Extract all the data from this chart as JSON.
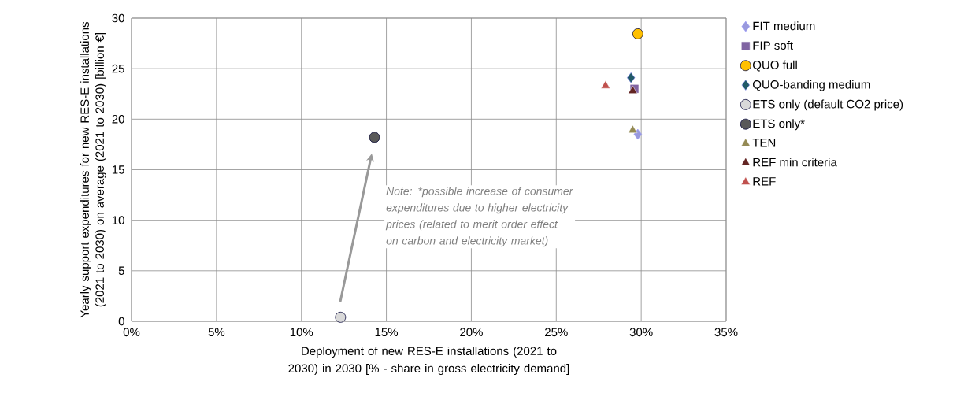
{
  "chart_data": {
    "type": "scatter",
    "xlabel": "Deployment of new RES-E installations (2021 to 2030) in 2030 [% - share in gross electricity demand]",
    "ylabel": "Yearly support expenditures for new RES-E installations (2021 to 2030) on average (2021 to 2030) [billion €]",
    "xlim": [
      0,
      35
    ],
    "ylim": [
      0,
      30
    ],
    "xticks": [
      {
        "value": 0,
        "label": "0%"
      },
      {
        "value": 5,
        "label": "5%"
      },
      {
        "value": 10,
        "label": "10%"
      },
      {
        "value": 15,
        "label": "15%"
      },
      {
        "value": 20,
        "label": "20%"
      },
      {
        "value": 25,
        "label": "25%"
      },
      {
        "value": 30,
        "label": "30%"
      },
      {
        "value": 35,
        "label": "35%"
      }
    ],
    "yticks": [
      0,
      5,
      10,
      15,
      20,
      25,
      30
    ],
    "grid": true,
    "legend": "right",
    "annotations": [
      "Note: *possible increase of consumer expenditures due to higher electricity prices (related to merit order effect on carbon and electricity market)"
    ],
    "series": [
      {
        "name": "FIT medium",
        "color": "#9999dd",
        "marker": "diamond",
        "x": [
          29.8
        ],
        "values": [
          18.5
        ]
      },
      {
        "name": "FIP soft",
        "color": "#8064a2",
        "marker": "square",
        "x": [
          29.6
        ],
        "values": [
          23.0
        ]
      },
      {
        "name": "QUO full",
        "color": "#ffc000",
        "marker": "circle",
        "x": [
          29.8
        ],
        "values": [
          28.45
        ]
      },
      {
        "name": "QUO-banding medium",
        "color": "#215968",
        "marker": "diamond",
        "x": [
          29.4
        ],
        "values": [
          24.1
        ]
      },
      {
        "name": "ETS only (default CO2 price)",
        "color": "#d9d9d9",
        "marker": "circle",
        "x": [
          12.3
        ],
        "values": [
          0.4
        ]
      },
      {
        "name": "ETS only*",
        "color": "#595959",
        "marker": "circle",
        "x": [
          14.3
        ],
        "values": [
          18.2
        ]
      },
      {
        "name": "TEN",
        "color": "#948a54",
        "marker": "triangle",
        "x": [
          29.5
        ],
        "values": [
          18.9
        ]
      },
      {
        "name": "REF min criteria",
        "color": "#632523",
        "marker": "triangle",
        "x": [
          29.5
        ],
        "values": [
          22.8
        ]
      },
      {
        "name": "REF",
        "color": "#c0504d",
        "marker": "triangle",
        "x": [
          27.9
        ],
        "values": [
          23.3
        ]
      }
    ]
  }
}
